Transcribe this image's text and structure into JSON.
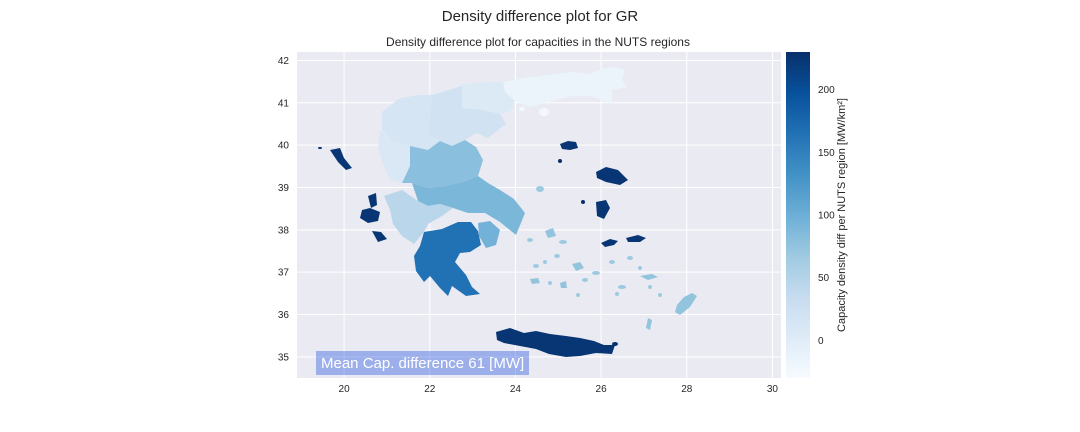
{
  "figure": {
    "suptitle": "Density difference plot for GR"
  },
  "chart_data": {
    "type": "choropleth",
    "title": "Density difference plot for capacities in the NUTS regions",
    "xlim": [
      18.9,
      30.2
    ],
    "ylim": [
      34.5,
      42.2
    ],
    "xticks": [
      20,
      22,
      24,
      26,
      28,
      30
    ],
    "yticks": [
      35,
      36,
      37,
      38,
      39,
      40,
      41,
      42
    ],
    "grid": true,
    "colormap": "Blues",
    "colorbar": {
      "label": "Capacity density diff per NUTS region [MW/km²]",
      "range": [
        -30,
        230
      ],
      "ticks": [
        0,
        50,
        100,
        150,
        200
      ]
    },
    "annotation": "Mean Cap. difference 61 [MW]",
    "regions": [
      {
        "id": "thrace",
        "value": -15
      },
      {
        "id": "east-macedonia",
        "value": 5
      },
      {
        "id": "central-macedonia",
        "value": 20
      },
      {
        "id": "western-macedonia",
        "value": 15
      },
      {
        "id": "epirus",
        "value": 8
      },
      {
        "id": "thessaly",
        "value": 80
      },
      {
        "id": "central-greece",
        "value": 90
      },
      {
        "id": "western-greece",
        "value": 45
      },
      {
        "id": "attica",
        "value": 95
      },
      {
        "id": "peloponnese",
        "value": 165
      },
      {
        "id": "crete",
        "value": 225
      },
      {
        "id": "ionian-islands",
        "value": 225
      },
      {
        "id": "north-aegean",
        "value": 225
      },
      {
        "id": "south-aegean",
        "value": 75
      }
    ]
  }
}
